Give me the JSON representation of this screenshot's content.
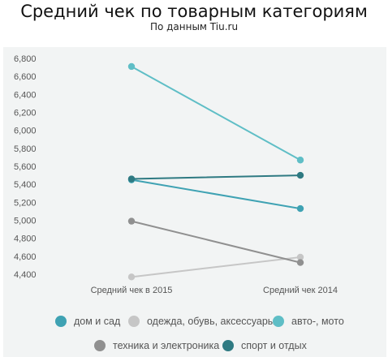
{
  "title": "Средний чек по товарным категориям",
  "subtitle": "По данным Tiu.ru",
  "chart_data": {
    "type": "line",
    "categories": [
      "Средний чек в 2015",
      "Средний чек 2014"
    ],
    "y_ticks": [
      "6,800",
      "6,600",
      "6,400",
      "6,200",
      "6,000",
      "5,800",
      "5,600",
      "5,400",
      "5,200",
      "5,000",
      "4,800",
      "4,600",
      "4,400"
    ],
    "ylim": [
      4400,
      6800
    ],
    "grid": false,
    "legend_position": "bottom",
    "series": [
      {
        "name": "дом и сад",
        "color": "#3fa2b3",
        "values": [
          5450,
          5130
        ]
      },
      {
        "name": "одежда, обувь, аксессуары",
        "color": "#c6c6c6",
        "values": [
          4370,
          4590
        ]
      },
      {
        "name": "авто-, мото",
        "color": "#5fbec6",
        "values": [
          6710,
          5670
        ]
      },
      {
        "name": "техника и электроника",
        "color": "#909090",
        "values": [
          4990,
          4530
        ]
      },
      {
        "name": "спорт и отдых",
        "color": "#2f7a82",
        "values": [
          5460,
          5500
        ]
      }
    ]
  }
}
